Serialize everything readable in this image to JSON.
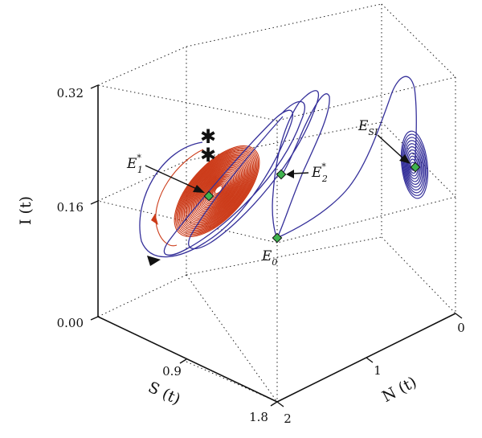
{
  "chart_data": {
    "type": "line",
    "projection": "3d",
    "x_axis": {
      "label": "S (t)",
      "ticks": [
        "0.9",
        "1.8"
      ]
    },
    "y_axis": {
      "label": "N (t)",
      "ticks": [
        "0",
        "1",
        "2"
      ]
    },
    "z_axis": {
      "label": "I (t)",
      "ticks": [
        "0.00",
        "0.16",
        "0.32"
      ],
      "range": [
        0.0,
        0.32
      ]
    },
    "grid": "dotted box",
    "series": [
      {
        "name": "",
        "color": "#35309a"
      },
      {
        "name": "",
        "color": "#cc3a18"
      }
    ],
    "equilibria": [
      {
        "label": "E",
        "sub": "1",
        "sup": "*"
      },
      {
        "label": "E",
        "sub": "2",
        "sup": "*"
      },
      {
        "label": "E",
        "sub": "0",
        "sup": ""
      },
      {
        "label": "E",
        "sub": "SI",
        "sup": ""
      }
    ],
    "initial_markers": [
      "✱",
      "✱"
    ],
    "colors": {
      "trajectory_blue": "#35309a",
      "trajectory_red": "#cc3a18",
      "equilibrium_fill": "#3fb34f"
    }
  }
}
